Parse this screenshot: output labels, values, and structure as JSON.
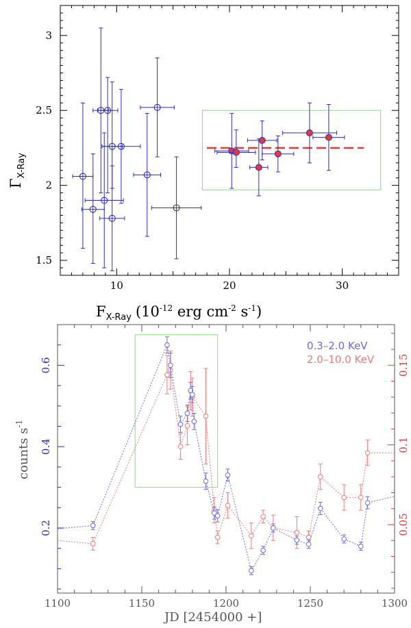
{
  "chart_data": [
    {
      "type": "scatter",
      "xlabel_main": "F",
      "xlabel_sub": "X-Ray",
      "xlabel_unit_a": "(10",
      "xlabel_unit_exp1": "-12",
      "xlabel_unit_b": " erg cm",
      "xlabel_unit_exp2": "-2",
      "xlabel_unit_c": " s",
      "xlabel_unit_exp3": "-1",
      "xlabel_unit_d": ")",
      "ylabel_main": "Γ",
      "ylabel_sub": "X-Ray",
      "xlim": [
        5,
        35
      ],
      "ylim": [
        1.4,
        3.2
      ],
      "x_ticks": [
        10,
        20,
        30
      ],
      "y_ticks": [
        1.5,
        2,
        2.5,
        3
      ],
      "series": [
        {
          "style": "open-blue",
          "points": [
            {
              "x": 7.0,
              "y": 2.06,
              "xerr": 0.9,
              "yerr_lo": 0.48,
              "yerr_hi": 0.49
            },
            {
              "x": 7.9,
              "y": 1.84,
              "xerr": 1.0,
              "yerr_lo": 0.36,
              "yerr_hi": 0.37
            },
            {
              "x": 8.6,
              "y": 2.5,
              "xerr": 0.7,
              "yerr_lo": 0.55,
              "yerr_hi": 0.55
            },
            {
              "x": 8.9,
              "y": 1.9,
              "xerr": 1.7,
              "yerr_lo": 0.45,
              "yerr_hi": 0.45
            },
            {
              "x": 9.2,
              "y": 2.5,
              "xerr": 0.9,
              "yerr_lo": 0.55,
              "yerr_hi": 0.22
            },
            {
              "x": 9.6,
              "y": 2.26,
              "xerr": 0.9,
              "yerr_lo": 0.28,
              "yerr_hi": 0.43
            },
            {
              "x": 9.6,
              "y": 1.78,
              "xerr": 1.1,
              "yerr_lo": 0.35,
              "yerr_hi": 0.35
            },
            {
              "x": 10.4,
              "y": 2.26,
              "xerr": 1.7,
              "yerr_lo": 0.38,
              "yerr_hi": 0.38
            },
            {
              "x": 12.7,
              "y": 2.07,
              "xerr": 1.2,
              "yerr_lo": 0.41,
              "yerr_hi": 0.41
            },
            {
              "x": 13.6,
              "y": 2.52,
              "xerr": 1.5,
              "yerr_lo": 0.33,
              "yerr_hi": 0.33
            },
            {
              "x": 15.3,
              "y": 1.85,
              "xerr": 2.2,
              "yerr_lo": 0.34,
              "yerr_hi": 0.34
            }
          ]
        },
        {
          "style": "filled-red",
          "points": [
            {
              "x": 20.2,
              "y": 2.23,
              "xerr": 1.5,
              "yerr_lo": 0.25,
              "yerr_hi": 0.25
            },
            {
              "x": 20.6,
              "y": 2.22,
              "xerr": 1.7,
              "yerr_lo": 0.1,
              "yerr_hi": 0.15
            },
            {
              "x": 22.6,
              "y": 2.12,
              "xerr": 0.8,
              "yerr_lo": 0.19,
              "yerr_hi": 0.19
            },
            {
              "x": 22.9,
              "y": 2.3,
              "xerr": 1.3,
              "yerr_lo": 0.13,
              "yerr_hi": 0.13
            },
            {
              "x": 24.3,
              "y": 2.21,
              "xerr": 1.4,
              "yerr_lo": 0.12,
              "yerr_hi": 0.12
            },
            {
              "x": 27.1,
              "y": 2.35,
              "xerr": 2.4,
              "yerr_lo": 0.2,
              "yerr_hi": 0.2
            },
            {
              "x": 28.8,
              "y": 2.32,
              "xerr": 1.4,
              "yerr_lo": 0.22,
              "yerr_hi": 0.22
            }
          ]
        }
      ],
      "mean_line": {
        "x0": 18.0,
        "x1": 31.9,
        "y": 2.25,
        "color": "#e23a3a"
      },
      "highlight_box": {
        "x0": 17.6,
        "x1": 33.4,
        "y0": 1.97,
        "y1": 2.5,
        "color": "#7ee07e"
      },
      "colors": {
        "blue": "#2b2bbd",
        "red": "#e23a3a"
      }
    },
    {
      "type": "line",
      "xlabel": "JD [2454000 +]",
      "ylabel_left_a": "counts s",
      "ylabel_left_exp": "-1",
      "xlim": [
        1100,
        1300
      ],
      "ylim_left": [
        0.04,
        0.7
      ],
      "ylim_right": [
        0.007,
        0.1755
      ],
      "x_ticks": [
        1100,
        1150,
        1200,
        1250,
        1300
      ],
      "y_ticks_left": [
        0.2,
        0.4,
        0.6
      ],
      "y_ticks_right": [
        0.05,
        0.1,
        0.15
      ],
      "legend": [
        {
          "label": "0.3–2.0 KeV",
          "color": "#6a6adf"
        },
        {
          "label": "2.0–10.0 KeV",
          "color": "#f07a7a"
        }
      ],
      "highlight_box": {
        "x0": 1146,
        "x1": 1195,
        "y0": 0.3,
        "y1": 0.675,
        "color": "#7ee07e"
      },
      "series": [
        {
          "name": "0.3–2.0 KeV",
          "axis": "left",
          "color": "#6a6adf",
          "points": [
            {
              "x": 1100,
              "y": 0.198
            },
            {
              "x": 1121,
              "y": 0.206,
              "err": 0.01
            },
            {
              "x": 1165,
              "y": 0.65,
              "err": 0.02
            },
            {
              "x": 1167,
              "y": 0.6,
              "err": 0.03
            },
            {
              "x": 1173,
              "y": 0.455,
              "err": 0.02
            },
            {
              "x": 1177,
              "y": 0.482,
              "err": 0.02
            },
            {
              "x": 1179,
              "y": 0.538,
              "err": 0.02
            },
            {
              "x": 1180,
              "y": 0.528,
              "err": 0.02
            },
            {
              "x": 1181,
              "y": 0.462,
              "err": 0.02
            },
            {
              "x": 1188,
              "y": 0.315,
              "err": 0.02
            },
            {
              "x": 1193,
              "y": 0.237,
              "err": 0.015
            },
            {
              "x": 1195,
              "y": 0.23,
              "err": 0.015
            },
            {
              "x": 1201,
              "y": 0.33,
              "err": 0.015
            },
            {
              "x": 1215,
              "y": 0.095,
              "err": 0.01
            },
            {
              "x": 1222,
              "y": 0.145,
              "err": 0.01
            },
            {
              "x": 1228,
              "y": 0.2,
              "err": 0.01
            },
            {
              "x": 1242,
              "y": 0.17,
              "err": 0.01
            },
            {
              "x": 1249,
              "y": 0.16,
              "err": 0.01
            },
            {
              "x": 1256,
              "y": 0.248,
              "err": 0.015
            },
            {
              "x": 1270,
              "y": 0.173,
              "err": 0.01
            },
            {
              "x": 1280,
              "y": 0.155,
              "err": 0.01
            },
            {
              "x": 1284,
              "y": 0.262,
              "err": 0.015
            },
            {
              "x": 1300,
              "y": 0.278
            }
          ]
        },
        {
          "name": "2.0–10.0 KeV",
          "axis": "right",
          "color": "#f07a7a",
          "points": [
            {
              "x": 1100,
              "y": 0.04
            },
            {
              "x": 1121,
              "y": 0.038,
              "err": 0.004
            },
            {
              "x": 1165,
              "y": 0.144,
              "err": 0.012
            },
            {
              "x": 1167,
              "y": 0.147,
              "err": 0.012
            },
            {
              "x": 1173,
              "y": 0.099,
              "err": 0.008
            },
            {
              "x": 1177,
              "y": 0.112,
              "err": 0.012
            },
            {
              "x": 1179,
              "y": 0.134,
              "err": 0.012
            },
            {
              "x": 1180,
              "y": 0.13,
              "err": 0.012
            },
            {
              "x": 1188,
              "y": 0.118,
              "err": 0.03
            },
            {
              "x": 1193,
              "y": 0.059,
              "err": 0.008
            },
            {
              "x": 1195,
              "y": 0.042,
              "err": 0.004
            },
            {
              "x": 1201,
              "y": 0.062,
              "err": 0.008
            },
            {
              "x": 1215,
              "y": 0.043,
              "err": 0.008
            },
            {
              "x": 1222,
              "y": 0.055,
              "err": 0.004
            },
            {
              "x": 1228,
              "y": 0.048,
              "err": 0.008
            },
            {
              "x": 1242,
              "y": 0.045,
              "err": 0.01
            },
            {
              "x": 1249,
              "y": 0.042,
              "err": 0.004
            },
            {
              "x": 1256,
              "y": 0.08,
              "err": 0.008
            },
            {
              "x": 1270,
              "y": 0.067,
              "err": 0.008
            },
            {
              "x": 1280,
              "y": 0.067,
              "err": 0.008
            },
            {
              "x": 1284,
              "y": 0.095,
              "err": 0.008
            },
            {
              "x": 1300,
              "y": 0.095
            }
          ]
        }
      ]
    }
  ]
}
